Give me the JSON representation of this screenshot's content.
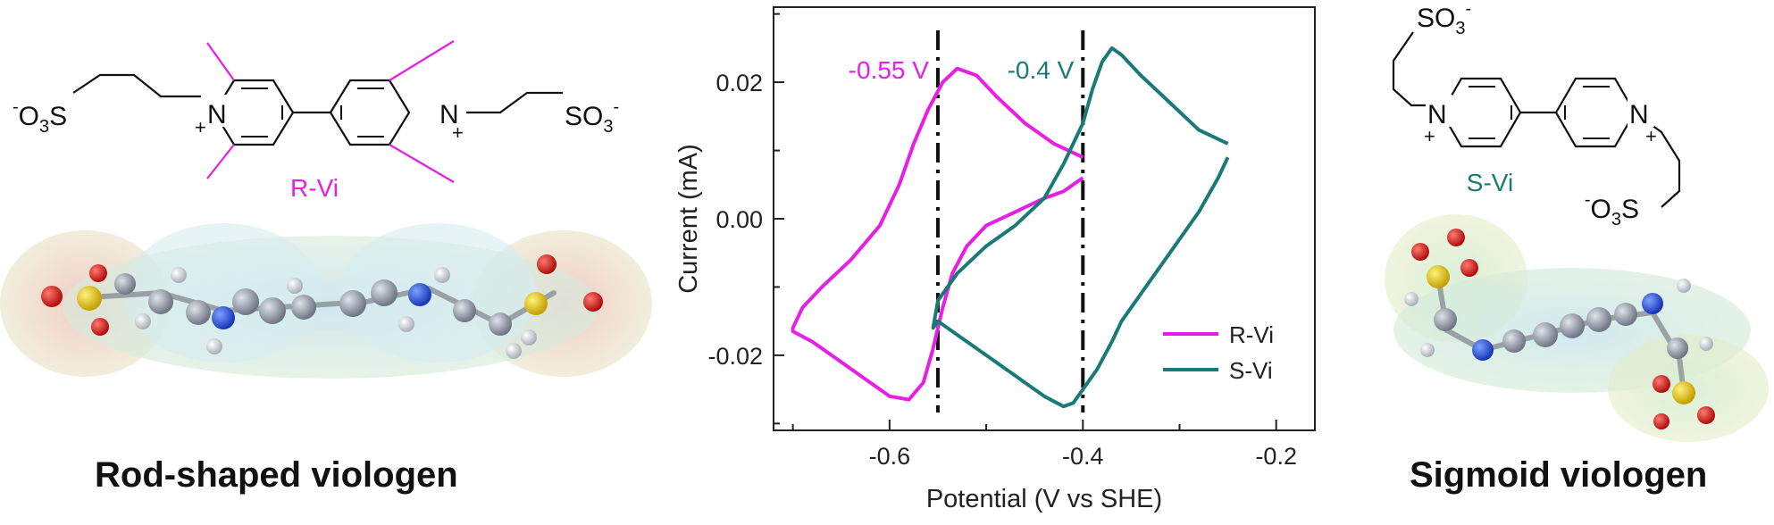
{
  "left_panel": {
    "molecule_label": "R-Vi",
    "caption": "Rod-shaped viologen",
    "label_color": "#e61ee6",
    "group_left": {
      "prefix": "-",
      "o": "O",
      "sub": "3",
      "s": "S"
    },
    "group_right": {
      "text": "SO",
      "sub": "3",
      "sup": "-"
    },
    "n_atom": "N",
    "plus": "+"
  },
  "right_panel": {
    "molecule_label": "S-Vi",
    "caption": "Sigmoid viologen",
    "label_color": "#1a7a78",
    "group_top": {
      "text": "SO",
      "sub": "3",
      "sup": "-"
    },
    "group_bottom": {
      "prefix": "-",
      "o": "O",
      "sub": "3",
      "s": "S"
    },
    "n_atom": "N",
    "plus": "+"
  },
  "chart_data": {
    "type": "line",
    "xlabel": "Potential (V vs SHE)",
    "ylabel": "Current (mA)",
    "xlim": [
      -0.72,
      -0.16
    ],
    "ylim": [
      -0.031,
      0.031
    ],
    "x_ticks": [
      -0.6,
      -0.4,
      -0.2
    ],
    "x_tick_labels": [
      "-0.6",
      "-0.4",
      "-0.2"
    ],
    "y_ticks": [
      -0.02,
      0.0,
      0.02
    ],
    "y_tick_labels": [
      "-0.02",
      "0.00",
      "0.02"
    ],
    "legend_position": "bottom-right",
    "grid": false,
    "series": [
      {
        "name": "R-Vi",
        "color": "#e61ee6",
        "points": [
          [
            -0.4,
            0.009
          ],
          [
            -0.43,
            0.011
          ],
          [
            -0.46,
            0.014
          ],
          [
            -0.49,
            0.018
          ],
          [
            -0.51,
            0.021
          ],
          [
            -0.53,
            0.022
          ],
          [
            -0.545,
            0.02
          ],
          [
            -0.56,
            0.016
          ],
          [
            -0.575,
            0.011
          ],
          [
            -0.59,
            0.005
          ],
          [
            -0.61,
            -0.001
          ],
          [
            -0.64,
            -0.006
          ],
          [
            -0.67,
            -0.01
          ],
          [
            -0.69,
            -0.013
          ],
          [
            -0.7,
            -0.016
          ],
          [
            -0.7,
            -0.0165
          ],
          [
            -0.68,
            -0.018
          ],
          [
            -0.65,
            -0.021
          ],
          [
            -0.62,
            -0.024
          ],
          [
            -0.6,
            -0.026
          ],
          [
            -0.58,
            -0.0265
          ],
          [
            -0.565,
            -0.024
          ],
          [
            -0.555,
            -0.019
          ],
          [
            -0.545,
            -0.013
          ],
          [
            -0.535,
            -0.008
          ],
          [
            -0.52,
            -0.004
          ],
          [
            -0.5,
            -0.001
          ],
          [
            -0.47,
            0.001
          ],
          [
            -0.44,
            0.003
          ],
          [
            -0.42,
            0.004
          ],
          [
            -0.4,
            0.006
          ]
        ]
      },
      {
        "name": "S-Vi",
        "color": "#1a7a78",
        "points": [
          [
            -0.25,
            0.009
          ],
          [
            -0.26,
            0.006
          ],
          [
            -0.28,
            0.001
          ],
          [
            -0.31,
            -0.005
          ],
          [
            -0.34,
            -0.011
          ],
          [
            -0.36,
            -0.015
          ],
          [
            -0.37,
            -0.018
          ],
          [
            -0.385,
            -0.022
          ],
          [
            -0.4,
            -0.025
          ],
          [
            -0.41,
            -0.027
          ],
          [
            -0.42,
            -0.0275
          ],
          [
            -0.44,
            -0.026
          ],
          [
            -0.47,
            -0.023
          ],
          [
            -0.5,
            -0.02
          ],
          [
            -0.53,
            -0.017
          ],
          [
            -0.55,
            -0.015
          ],
          [
            -0.555,
            -0.016
          ],
          [
            -0.55,
            -0.012
          ],
          [
            -0.53,
            -0.008
          ],
          [
            -0.5,
            -0.004
          ],
          [
            -0.47,
            -0.001
          ],
          [
            -0.44,
            0.003
          ],
          [
            -0.42,
            0.008
          ],
          [
            -0.4,
            0.014
          ],
          [
            -0.39,
            0.019
          ],
          [
            -0.38,
            0.023
          ],
          [
            -0.37,
            0.025
          ],
          [
            -0.36,
            0.024
          ],
          [
            -0.34,
            0.021
          ],
          [
            -0.31,
            0.017
          ],
          [
            -0.28,
            0.013
          ],
          [
            -0.25,
            0.011
          ]
        ]
      }
    ],
    "vlines": [
      {
        "x": -0.55,
        "label": "-0.55 V",
        "label_color": "#e61ee6"
      },
      {
        "x": -0.4,
        "label": "-0.4 V",
        "label_color": "#1a7a78"
      }
    ]
  }
}
